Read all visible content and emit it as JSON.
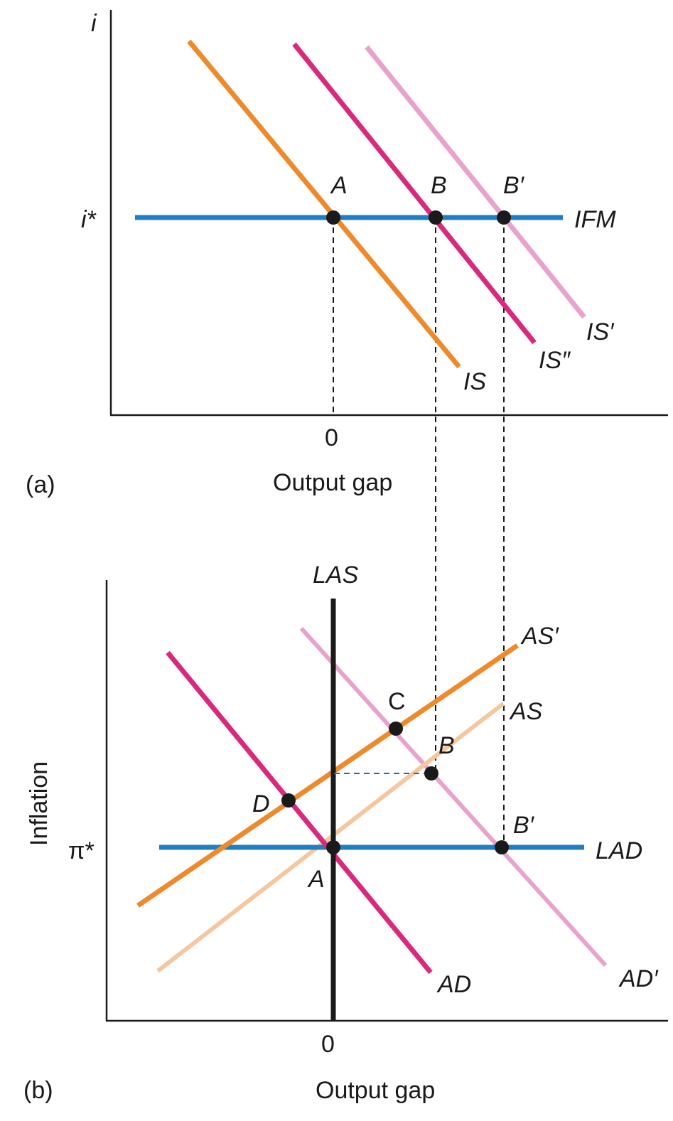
{
  "colors": {
    "ifm_lad": "#1f7fc4",
    "is_orange": "#ee8a2c",
    "is_magenta": "#d9297c",
    "is_pink": "#e8a2cd",
    "as_light": "#f6c79e",
    "las": "#1a1a1a"
  },
  "panel_a": {
    "y_axis": "i",
    "x_axis": "Output gap",
    "zero": "0",
    "tag": "(a)",
    "i_star": "i*",
    "curves": {
      "ifm": "IFM",
      "is": "IS",
      "is2": "IS″",
      "is1": "IS′"
    },
    "points": {
      "a": "A",
      "b": "B",
      "b1": "B′"
    }
  },
  "panel_b": {
    "y_axis": "Inflation",
    "x_axis": "Output gap",
    "zero": "0",
    "tag": "(b)",
    "pi_star": "π*",
    "curves": {
      "las": "LAS",
      "lad": "LAD",
      "as": "AS",
      "as1": "AS′",
      "ad": "AD",
      "ad1": "AD′"
    },
    "points": {
      "a": "A",
      "b": "B",
      "b1": "B′",
      "c": "C",
      "d": "D"
    }
  }
}
